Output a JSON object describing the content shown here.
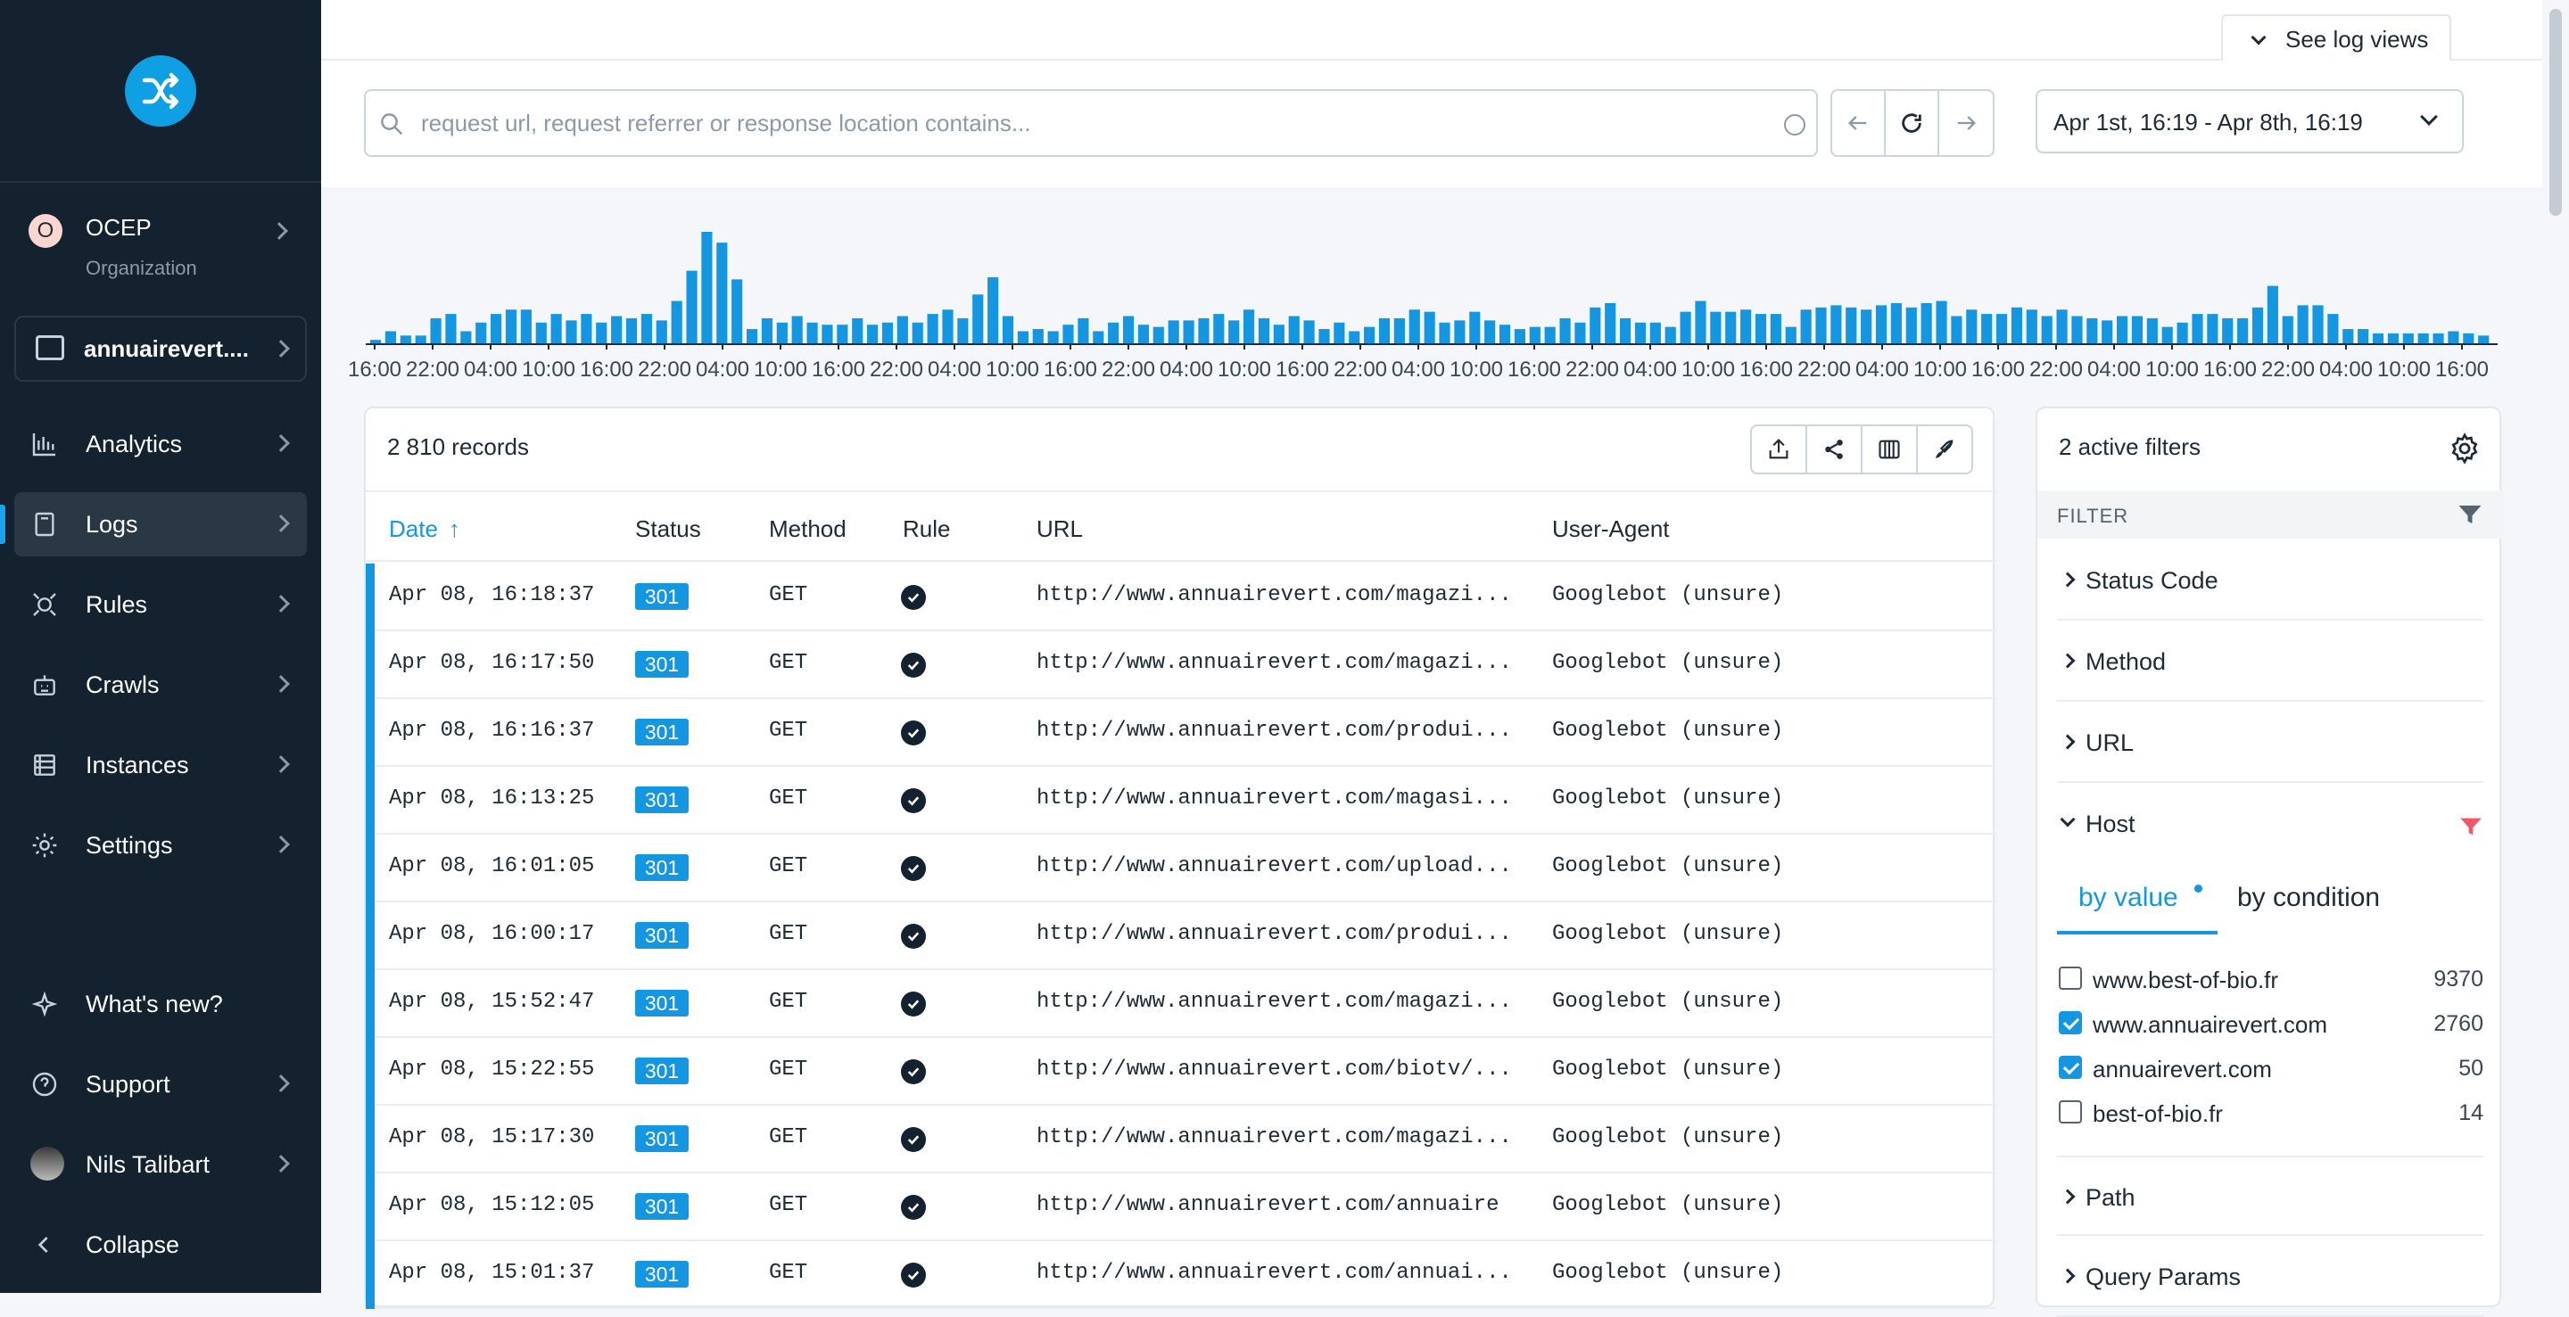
{
  "sidebar": {
    "org": {
      "badge": "O",
      "name": "OCEP",
      "sub": "Organization"
    },
    "project": {
      "name": "annuairevert...."
    },
    "nav": [
      {
        "label": "Analytics",
        "icon": "analytics-icon"
      },
      {
        "label": "Logs",
        "icon": "logs-icon"
      },
      {
        "label": "Rules",
        "icon": "rules-icon"
      },
      {
        "label": "Crawls",
        "icon": "crawls-icon"
      },
      {
        "label": "Instances",
        "icon": "instances-icon"
      },
      {
        "label": "Settings",
        "icon": "settings-icon"
      }
    ],
    "bottom": [
      {
        "label": "What's new?"
      },
      {
        "label": "Support"
      },
      {
        "label": "Nils Talibart"
      },
      {
        "label": "Collapse"
      }
    ]
  },
  "topbar": {
    "see_log_views": "See log views",
    "search_placeholder": "request url, request referrer or response location contains...",
    "date_range": "Apr 1st, 16:19 - Apr 8th, 16:19"
  },
  "histogram": {
    "type": "bar",
    "tick_labels": [
      "16:00",
      "22:00",
      "04:00",
      "10:00",
      "16:00",
      "22:00",
      "04:00",
      "10:00",
      "16:00",
      "22:00",
      "04:00",
      "10:00",
      "16:00",
      "22:00",
      "04:00",
      "10:00",
      "16:00",
      "22:00",
      "04:00",
      "10:00",
      "16:00",
      "22:00",
      "04:00",
      "10:00",
      "16:00",
      "22:00",
      "04:00",
      "10:00",
      "16:00",
      "22:00",
      "04:00",
      "10:00",
      "16:00",
      "22:00",
      "04:00",
      "10:00",
      "16:00"
    ],
    "values": [
      2,
      5,
      4,
      4,
      12,
      15,
      6,
      8,
      13,
      16,
      16,
      9,
      13,
      10,
      12,
      8,
      11,
      11,
      13,
      11,
      21,
      34,
      52,
      47,
      30,
      7,
      10,
      8,
      11,
      9,
      8,
      8,
      12,
      8,
      9,
      12,
      9,
      12,
      15,
      11,
      22,
      31,
      12,
      5,
      6,
      5,
      8,
      11,
      5,
      9,
      11,
      8,
      7,
      10,
      10,
      11,
      12,
      10,
      15,
      11,
      8,
      11,
      10,
      6,
      8,
      5,
      7,
      10,
      10,
      15,
      13,
      8,
      9,
      13,
      10,
      7,
      5,
      6,
      6,
      10,
      8,
      16,
      17,
      11,
      8,
      8,
      6,
      13,
      18,
      13,
      13,
      14,
      12,
      12,
      6,
      14,
      15,
      16,
      15,
      14,
      16,
      17,
      15,
      17,
      18,
      11,
      14,
      12,
      12,
      15,
      14,
      11,
      14,
      11,
      10,
      9,
      11,
      11,
      10,
      6,
      8,
      12,
      12,
      10,
      10,
      15,
      25,
      11,
      16,
      16,
      12,
      5,
      5,
      3,
      3,
      3,
      3,
      3,
      4,
      3,
      2
    ],
    "heights": [
      2,
      6,
      4,
      4,
      12,
      14,
      6,
      10,
      14,
      16,
      16,
      10,
      14,
      11,
      14,
      10,
      13,
      12,
      14,
      11,
      20,
      34,
      52,
      47,
      30,
      7,
      12,
      10,
      13,
      10,
      9,
      9,
      12,
      9,
      10,
      13,
      10,
      14,
      16,
      12,
      23,
      31,
      13,
      6,
      7,
      6,
      9,
      12,
      6,
      10,
      13,
      9,
      8,
      11,
      11,
      12,
      14,
      11,
      16,
      12,
      9,
      13,
      11,
      7,
      10,
      6,
      8,
      12,
      12,
      16,
      15,
      10,
      11,
      15,
      11,
      9,
      7,
      8,
      8,
      12,
      10,
      17,
      19,
      12,
      10,
      10,
      8,
      15,
      20,
      15,
      15,
      16,
      14,
      14,
      8,
      16,
      17,
      18,
      17,
      16,
      18,
      19,
      17,
      19,
      20,
      13,
      16,
      14,
      14,
      17,
      16,
      13,
      16,
      13,
      12,
      11,
      13,
      13,
      12,
      8,
      10,
      14,
      14,
      12,
      12,
      17,
      27,
      13,
      18,
      18,
      14,
      7,
      7,
      5,
      5,
      5,
      5,
      5,
      6,
      5,
      4
    ]
  },
  "table": {
    "records": "2 810 records",
    "columns": {
      "date": "Date",
      "status": "Status",
      "method": "Method",
      "rule": "Rule",
      "url": "URL",
      "ua": "User-Agent"
    },
    "rows": [
      {
        "date": "Apr 08, 16:18:37",
        "status": "301",
        "method": "GET",
        "url": "http://www.annuairevert.com/magazi...",
        "ua": "Googlebot (unsure)"
      },
      {
        "date": "Apr 08, 16:17:50",
        "status": "301",
        "method": "GET",
        "url": "http://www.annuairevert.com/magazi...",
        "ua": "Googlebot (unsure)"
      },
      {
        "date": "Apr 08, 16:16:37",
        "status": "301",
        "method": "GET",
        "url": "http://www.annuairevert.com/produi...",
        "ua": "Googlebot (unsure)"
      },
      {
        "date": "Apr 08, 16:13:25",
        "status": "301",
        "method": "GET",
        "url": "http://www.annuairevert.com/magasi...",
        "ua": "Googlebot (unsure)"
      },
      {
        "date": "Apr 08, 16:01:05",
        "status": "301",
        "method": "GET",
        "url": "http://www.annuairevert.com/upload...",
        "ua": "Googlebot (unsure)"
      },
      {
        "date": "Apr 08, 16:00:17",
        "status": "301",
        "method": "GET",
        "url": "http://www.annuairevert.com/produi...",
        "ua": "Googlebot (unsure)"
      },
      {
        "date": "Apr 08, 15:52:47",
        "status": "301",
        "method": "GET",
        "url": "http://www.annuairevert.com/magazi...",
        "ua": "Googlebot (unsure)"
      },
      {
        "date": "Apr 08, 15:22:55",
        "status": "301",
        "method": "GET",
        "url": "http://www.annuairevert.com/biotv/...",
        "ua": "Googlebot (unsure)"
      },
      {
        "date": "Apr 08, 15:17:30",
        "status": "301",
        "method": "GET",
        "url": "http://www.annuairevert.com/magazi...",
        "ua": "Googlebot (unsure)"
      },
      {
        "date": "Apr 08, 15:12:05",
        "status": "301",
        "method": "GET",
        "url": "http://www.annuairevert.com/annuaire",
        "ua": "Googlebot (unsure)"
      },
      {
        "date": "Apr 08, 15:01:37",
        "status": "301",
        "method": "GET",
        "url": "http://www.annuairevert.com/annuai...",
        "ua": "Googlebot (unsure)"
      }
    ]
  },
  "filters": {
    "title": "2 active filters",
    "bar_label": "FILTER",
    "sections": [
      "Status Code",
      "Method",
      "URL",
      "Host",
      "Path",
      "Query Params"
    ],
    "host_tabs": [
      "by value",
      "by condition"
    ],
    "host_values": [
      {
        "label": "www.best-of-bio.fr",
        "count": "9370",
        "checked": false
      },
      {
        "label": "www.annuairevert.com",
        "count": "2760",
        "checked": true
      },
      {
        "label": "annuairevert.com",
        "count": "50",
        "checked": true
      },
      {
        "label": "best-of-bio.fr",
        "count": "14",
        "checked": false
      }
    ]
  },
  "colors": {
    "accent": "#1596e0",
    "sidebar": "#14212e",
    "filter_active": "#f0576b"
  }
}
